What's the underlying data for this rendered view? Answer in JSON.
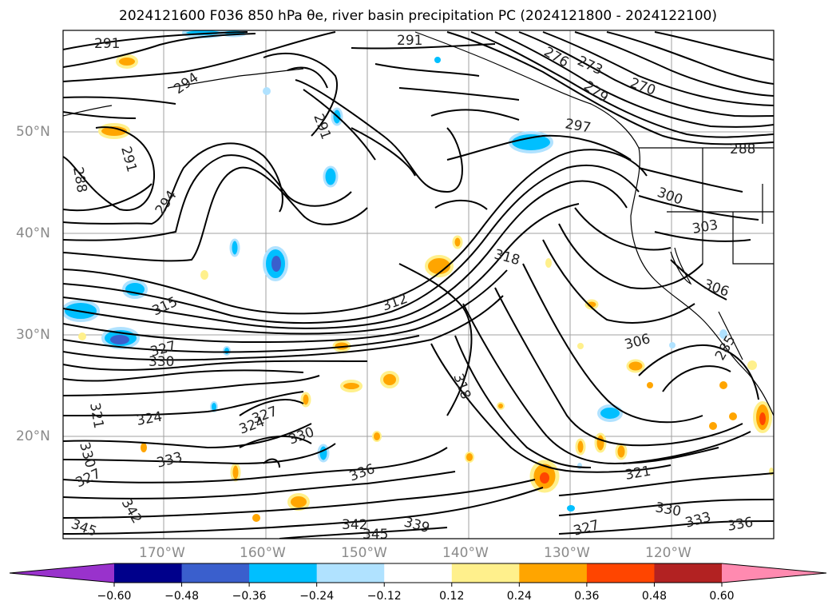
{
  "title": "2024121600 F036 850 hPa θe, river basin precipitation PC (2024121800 - 2024122100)",
  "lat_labels": [
    "50°N",
    "40°N",
    "30°N",
    "20°N"
  ],
  "lon_labels": [
    "170°W",
    "160°W",
    "150°W",
    "140°W",
    "130°W",
    "120°W"
  ],
  "contour_labels": [
    "291",
    "291",
    "294",
    "291",
    "291",
    "288",
    "294",
    "276",
    "273",
    "279",
    "270",
    "297",
    "288",
    "300",
    "303",
    "318",
    "315",
    "312",
    "306",
    "306",
    "327",
    "330",
    "318",
    "321",
    "324",
    "327",
    "330",
    "324",
    "333",
    "336",
    "330",
    "327",
    "342",
    "345",
    "342",
    "345",
    "339",
    "327",
    "321",
    "330",
    "333",
    "336",
    "285"
  ],
  "colorbar": {
    "ticks": [
      "−0.60",
      "−0.48",
      "−0.36",
      "−0.24",
      "−0.12",
      "0.12",
      "0.24",
      "0.36",
      "0.48",
      "0.60"
    ],
    "colors": [
      "#9932cc",
      "#00008b",
      "#3a5fcd",
      "#00bfff",
      "#b0e2ff",
      "#ffffff",
      "#fff08c",
      "#ffa500",
      "#ff4500",
      "#b22222",
      "#ff8ab0"
    ]
  }
}
